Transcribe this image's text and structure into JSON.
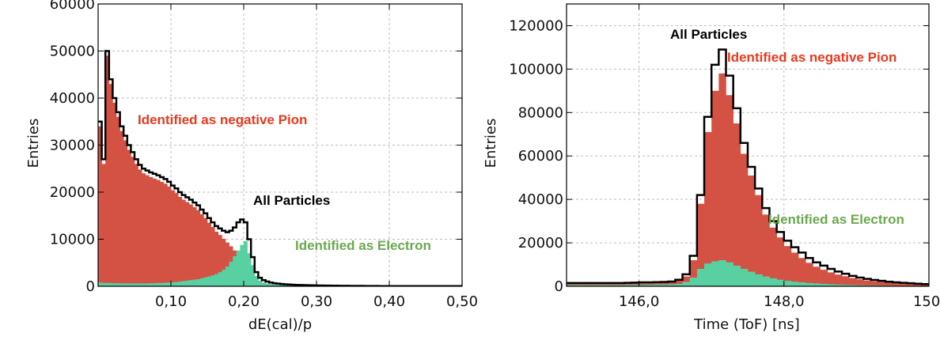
{
  "colors": {
    "all_particles": "#000000",
    "pion": "#d45243",
    "electron": "#58d0a2",
    "pion_text": "#e8391e",
    "electron_text": "#6aa84f",
    "grid": "#bdbdbd"
  },
  "chart_data": [
    {
      "type": "histogram",
      "xlabel": "dE(cal)/p",
      "ylabel": "Entries",
      "xlim": [
        0.0,
        0.5
      ],
      "ylim": [
        0,
        60000
      ],
      "xticks": [
        0.1,
        0.2,
        0.3,
        0.4,
        0.5
      ],
      "xtick_labels": [
        "0,10",
        "0,20",
        "0,30",
        "0,40",
        "0,50"
      ],
      "yticks": [
        0,
        10000,
        20000,
        30000,
        40000,
        50000,
        60000
      ],
      "ytick_labels": [
        "0",
        "10000",
        "20000",
        "30000",
        "40000",
        "50000",
        "60000"
      ],
      "grid": true,
      "annotations": {
        "pion": "Identified as negative Pion",
        "all": "All Particles",
        "electron": "Identified as Electron"
      },
      "bin_edges": [
        0.0,
        0.005,
        0.01,
        0.015,
        0.02,
        0.025,
        0.03,
        0.035,
        0.04,
        0.045,
        0.05,
        0.055,
        0.06,
        0.065,
        0.07,
        0.075,
        0.08,
        0.085,
        0.09,
        0.095,
        0.1,
        0.105,
        0.11,
        0.115,
        0.12,
        0.125,
        0.13,
        0.135,
        0.14,
        0.145,
        0.15,
        0.155,
        0.16,
        0.165,
        0.17,
        0.175,
        0.18,
        0.185,
        0.19,
        0.195,
        0.2,
        0.205,
        0.21,
        0.215,
        0.22,
        0.225,
        0.23,
        0.235,
        0.24,
        0.245,
        0.25,
        0.255,
        0.26,
        0.265,
        0.27,
        0.275,
        0.28,
        0.285,
        0.29,
        0.295,
        0.3,
        0.305,
        0.31,
        0.315,
        0.32,
        0.325,
        0.33,
        0.335,
        0.34,
        0.345,
        0.35,
        0.355,
        0.36,
        0.365,
        0.37,
        0.375,
        0.38,
        0.385,
        0.39,
        0.395,
        0.4,
        0.405,
        0.41,
        0.415,
        0.42,
        0.425,
        0.43,
        0.435,
        0.44,
        0.445,
        0.45,
        0.455,
        0.46,
        0.465,
        0.47,
        0.475,
        0.48,
        0.485,
        0.49,
        0.495,
        0.5
      ],
      "series": [
        {
          "name": "All Particles",
          "style": "outline",
          "values": [
            35000,
            27000,
            50000,
            44000,
            40000,
            37000,
            34000,
            32000,
            30000,
            28500,
            27000,
            25800,
            25000,
            24600,
            24200,
            23900,
            23600,
            23200,
            22800,
            22200,
            21400,
            20800,
            20000,
            19400,
            18900,
            18400,
            17800,
            17200,
            16300,
            15500,
            14500,
            13600,
            12800,
            12300,
            11800,
            11500,
            11800,
            12500,
            13600,
            14200,
            13600,
            10000,
            6200,
            3000,
            1800,
            1300,
            1000,
            800,
            650,
            560,
            480,
            420,
            370,
            330,
            300,
            270,
            250,
            230,
            210,
            190,
            175,
            160,
            150,
            140,
            130,
            120,
            110,
            100,
            95,
            90,
            85,
            80,
            75,
            70,
            65,
            60,
            55,
            50,
            45,
            40,
            40,
            40,
            40,
            40,
            40,
            40,
            40,
            40,
            40,
            40,
            40,
            40,
            40,
            40,
            40,
            40,
            40,
            40,
            40,
            40
          ]
        },
        {
          "name": "Identified as negative Pion",
          "style": "fill",
          "values": [
            34000,
            26000,
            49000,
            43000,
            39000,
            36000,
            33000,
            31000,
            29000,
            27500,
            26000,
            24800,
            24000,
            23600,
            23200,
            22900,
            22600,
            22200,
            21800,
            21200,
            20400,
            19800,
            19000,
            18400,
            17900,
            17400,
            16800,
            16200,
            15300,
            14500,
            13500,
            12600,
            11600,
            10900,
            10100,
            9300,
            8500,
            7600,
            6700,
            5500,
            4400,
            3200,
            2000,
            1200,
            800,
            600,
            450,
            350,
            300,
            260,
            230,
            200,
            180,
            160,
            140,
            120,
            110,
            100,
            90,
            80,
            75,
            70,
            65,
            60,
            55,
            50,
            45,
            40,
            38,
            35,
            32,
            30,
            28,
            26,
            24,
            22,
            20,
            18,
            16,
            15,
            15,
            15,
            15,
            15,
            15,
            15,
            15,
            15,
            15,
            15,
            15,
            15,
            15,
            15,
            15,
            15,
            15,
            15,
            15,
            15
          ]
        },
        {
          "name": "Identified as Electron",
          "style": "fill",
          "values": [
            800,
            700,
            700,
            700,
            650,
            650,
            600,
            600,
            600,
            600,
            600,
            600,
            600,
            600,
            650,
            650,
            700,
            700,
            750,
            800,
            850,
            900,
            1000,
            1100,
            1200,
            1300,
            1400,
            1500,
            1700,
            1900,
            2100,
            2300,
            2600,
            3000,
            3500,
            4200,
            5200,
            6400,
            7600,
            8800,
            9600,
            7000,
            4500,
            2200,
            1200,
            800,
            600,
            500,
            420,
            380,
            350,
            320,
            300,
            280,
            270,
            260,
            250,
            240,
            230,
            220,
            210,
            200,
            200,
            200,
            200,
            200,
            200,
            200,
            200,
            200,
            200,
            200,
            200,
            200,
            200,
            200,
            200,
            200,
            200,
            200,
            200,
            200,
            200,
            200,
            200,
            200,
            200,
            200,
            200,
            200,
            200,
            200,
            200,
            200,
            200,
            200,
            200,
            200,
            200,
            200
          ]
        }
      ]
    },
    {
      "type": "histogram",
      "xlabel": "Time (ToF) [ns]",
      "ylabel": "Entries",
      "xlim": [
        145.0,
        150.0
      ],
      "ylim": [
        0,
        130000
      ],
      "xticks": [
        146,
        148,
        150
      ],
      "xtick_labels": [
        "146,0",
        "148,0",
        "150,"
      ],
      "yticks": [
        0,
        20000,
        40000,
        60000,
        80000,
        100000,
        120000
      ],
      "ytick_labels": [
        "0",
        "20000",
        "40000",
        "60000",
        "80000",
        "100000",
        "120000"
      ],
      "grid": true,
      "annotations": {
        "all": "All Particles",
        "pion": "Identified as negative Pion",
        "electron": "Identified as Electron"
      },
      "bin_edges": [
        145.0,
        145.1,
        145.2,
        145.3,
        145.4,
        145.5,
        145.6,
        145.7,
        145.8,
        145.9,
        146.0,
        146.1,
        146.2,
        146.3,
        146.4,
        146.5,
        146.6,
        146.7,
        146.8,
        146.9,
        147.0,
        147.1,
        147.2,
        147.3,
        147.4,
        147.5,
        147.6,
        147.7,
        147.8,
        147.9,
        148.0,
        148.1,
        148.2,
        148.3,
        148.4,
        148.5,
        148.6,
        148.7,
        148.8,
        148.9,
        149.0,
        149.1,
        149.2,
        149.3,
        149.4,
        149.5,
        149.6,
        149.7,
        149.8,
        149.9,
        150.0
      ],
      "series": [
        {
          "name": "All Particles",
          "style": "outline",
          "values": [
            1500,
            1500,
            1500,
            1500,
            1500,
            1500,
            1500,
            1500,
            1600,
            1700,
            1800,
            1800,
            1900,
            2000,
            2200,
            3000,
            5500,
            14000,
            42000,
            78000,
            102000,
            109000,
            97000,
            82000,
            66000,
            55000,
            45000,
            36000,
            30000,
            25000,
            21000,
            18000,
            15500,
            13000,
            11000,
            9500,
            8000,
            6800,
            5800,
            4800,
            4000,
            3400,
            2900,
            2500,
            2100,
            1800,
            1600,
            1400,
            1200,
            1000
          ]
        },
        {
          "name": "Identified as negative Pion",
          "style": "fill",
          "values": [
            1300,
            1300,
            1300,
            1300,
            1300,
            1300,
            1300,
            1300,
            1400,
            1500,
            1600,
            1600,
            1700,
            1800,
            2000,
            2600,
            4500,
            12000,
            38000,
            71000,
            90000,
            98000,
            88000,
            75000,
            61000,
            51000,
            42000,
            33000,
            27000,
            22500,
            18500,
            15500,
            13000,
            10800,
            9000,
            7600,
            6400,
            5400,
            4600,
            3800,
            3200,
            2700,
            2300,
            2000,
            1700,
            1450,
            1300,
            1150,
            1000,
            850
          ]
        },
        {
          "name": "Identified as Electron",
          "style": "fill",
          "values": [
            600,
            600,
            600,
            600,
            600,
            600,
            600,
            600,
            650,
            700,
            700,
            750,
            800,
            850,
            900,
            1100,
            2000,
            4000,
            8000,
            10500,
            11500,
            12000,
            11000,
            9500,
            8000,
            6700,
            5500,
            4500,
            3700,
            3000,
            2500,
            2100,
            1800,
            1500,
            1300,
            1100,
            950,
            800,
            700,
            600,
            500,
            450,
            400,
            350,
            300,
            260,
            230,
            200,
            180,
            160
          ]
        }
      ]
    }
  ]
}
